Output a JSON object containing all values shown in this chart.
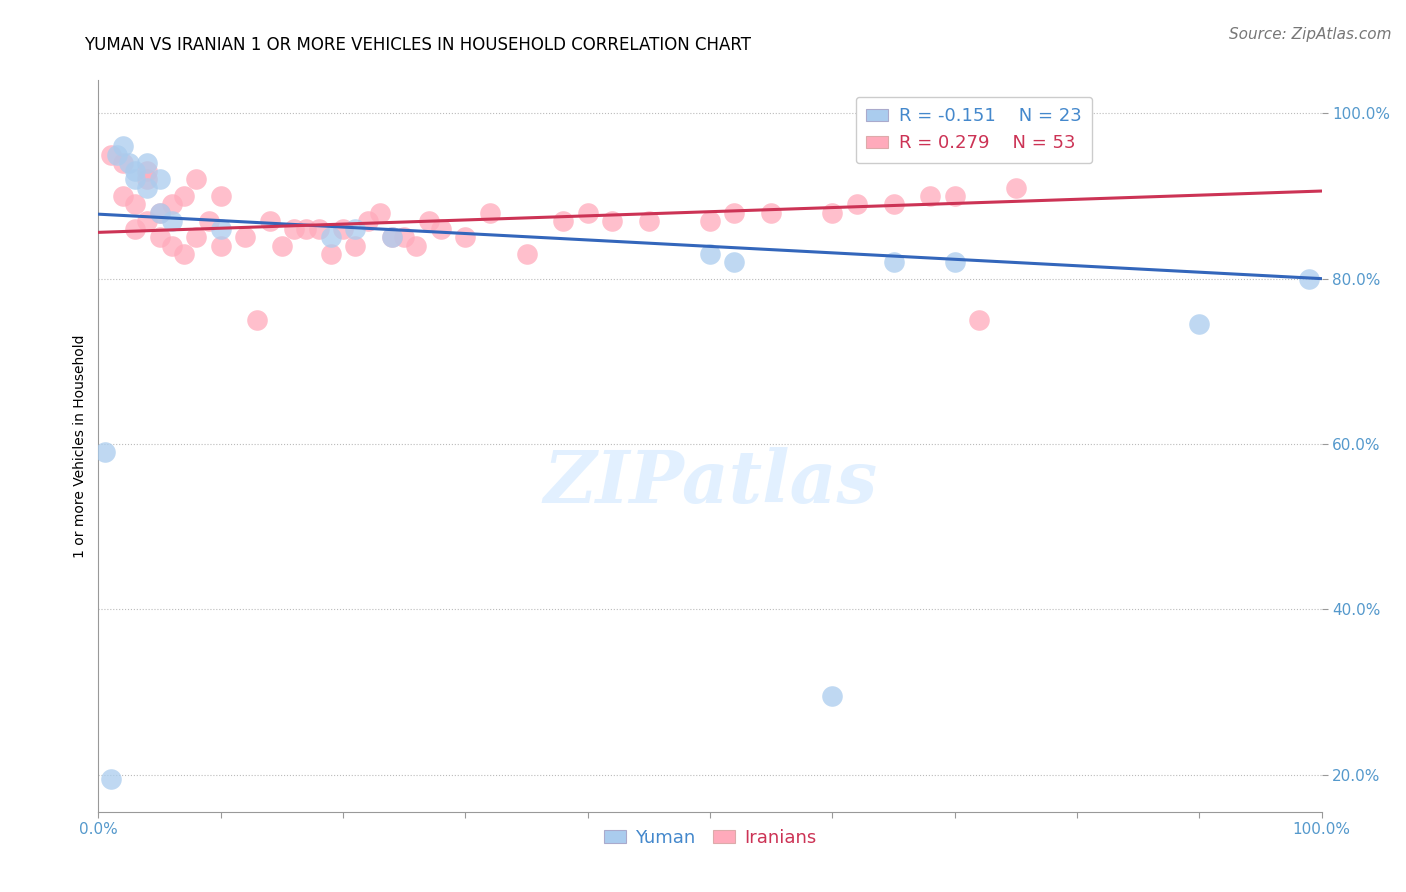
{
  "title": "YUMAN VS IRANIAN 1 OR MORE VEHICLES IN HOUSEHOLD CORRELATION CHART",
  "source": "Source: ZipAtlas.com",
  "ylabel": "1 or more Vehicles in Household",
  "xlim": [
    0.0,
    1.0
  ],
  "ylim": [
    0.155,
    1.04
  ],
  "yticks": [
    0.2,
    0.4,
    0.6,
    0.8,
    1.0
  ],
  "xticks": [
    0.0,
    0.1,
    0.2,
    0.3,
    0.4,
    0.5,
    0.6,
    0.7,
    0.8,
    0.9,
    1.0
  ],
  "yticklabels": [
    "20.0%",
    "40.0%",
    "60.0%",
    "80.0%",
    "100.0%"
  ],
  "xticklabels": [
    "0.0%",
    "",
    "",
    "",
    "",
    "",
    "",
    "",
    "",
    "",
    "100.0%"
  ],
  "grid_color": "#bbbbbb",
  "background_color": "#ffffff",
  "blue_color": "#aaccee",
  "pink_color": "#ffaabb",
  "blue_line_color": "#3366bb",
  "pink_line_color": "#cc3355",
  "legend_r_blue": "R = -0.151",
  "legend_n_blue": "N = 23",
  "legend_r_pink": "R = 0.279",
  "legend_n_pink": "N = 53",
  "yuman_x": [
    0.005,
    0.01,
    0.015,
    0.02,
    0.025,
    0.03,
    0.03,
    0.04,
    0.04,
    0.05,
    0.05,
    0.06,
    0.1,
    0.19,
    0.21,
    0.24,
    0.5,
    0.52,
    0.6,
    0.65,
    0.7,
    0.9,
    0.99
  ],
  "yuman_y": [
    0.59,
    0.195,
    0.95,
    0.96,
    0.94,
    0.93,
    0.92,
    0.94,
    0.91,
    0.92,
    0.88,
    0.87,
    0.86,
    0.85,
    0.86,
    0.85,
    0.83,
    0.82,
    0.295,
    0.82,
    0.82,
    0.745,
    0.8
  ],
  "iranian_x": [
    0.01,
    0.02,
    0.02,
    0.03,
    0.03,
    0.04,
    0.04,
    0.04,
    0.05,
    0.05,
    0.06,
    0.06,
    0.07,
    0.07,
    0.08,
    0.08,
    0.09,
    0.1,
    0.1,
    0.12,
    0.13,
    0.14,
    0.15,
    0.16,
    0.17,
    0.18,
    0.19,
    0.2,
    0.21,
    0.22,
    0.23,
    0.24,
    0.25,
    0.26,
    0.27,
    0.28,
    0.3,
    0.32,
    0.35,
    0.38,
    0.4,
    0.42,
    0.45,
    0.5,
    0.52,
    0.55,
    0.6,
    0.62,
    0.65,
    0.68,
    0.7,
    0.72,
    0.75
  ],
  "iranian_y": [
    0.95,
    0.9,
    0.94,
    0.86,
    0.89,
    0.87,
    0.92,
    0.93,
    0.85,
    0.88,
    0.84,
    0.89,
    0.83,
    0.9,
    0.85,
    0.92,
    0.87,
    0.84,
    0.9,
    0.85,
    0.75,
    0.87,
    0.84,
    0.86,
    0.86,
    0.86,
    0.83,
    0.86,
    0.84,
    0.87,
    0.88,
    0.85,
    0.85,
    0.84,
    0.87,
    0.86,
    0.85,
    0.88,
    0.83,
    0.87,
    0.88,
    0.87,
    0.87,
    0.87,
    0.88,
    0.88,
    0.88,
    0.89,
    0.89,
    0.9,
    0.9,
    0.75,
    0.91
  ],
  "title_fontsize": 12,
  "axis_label_fontsize": 10,
  "tick_fontsize": 11,
  "legend_fontsize": 13,
  "source_fontsize": 11,
  "blue_trendline_start_y": 0.878,
  "blue_trendline_end_y": 0.8,
  "pink_trendline_start_y": 0.856,
  "pink_trendline_end_y": 0.906
}
